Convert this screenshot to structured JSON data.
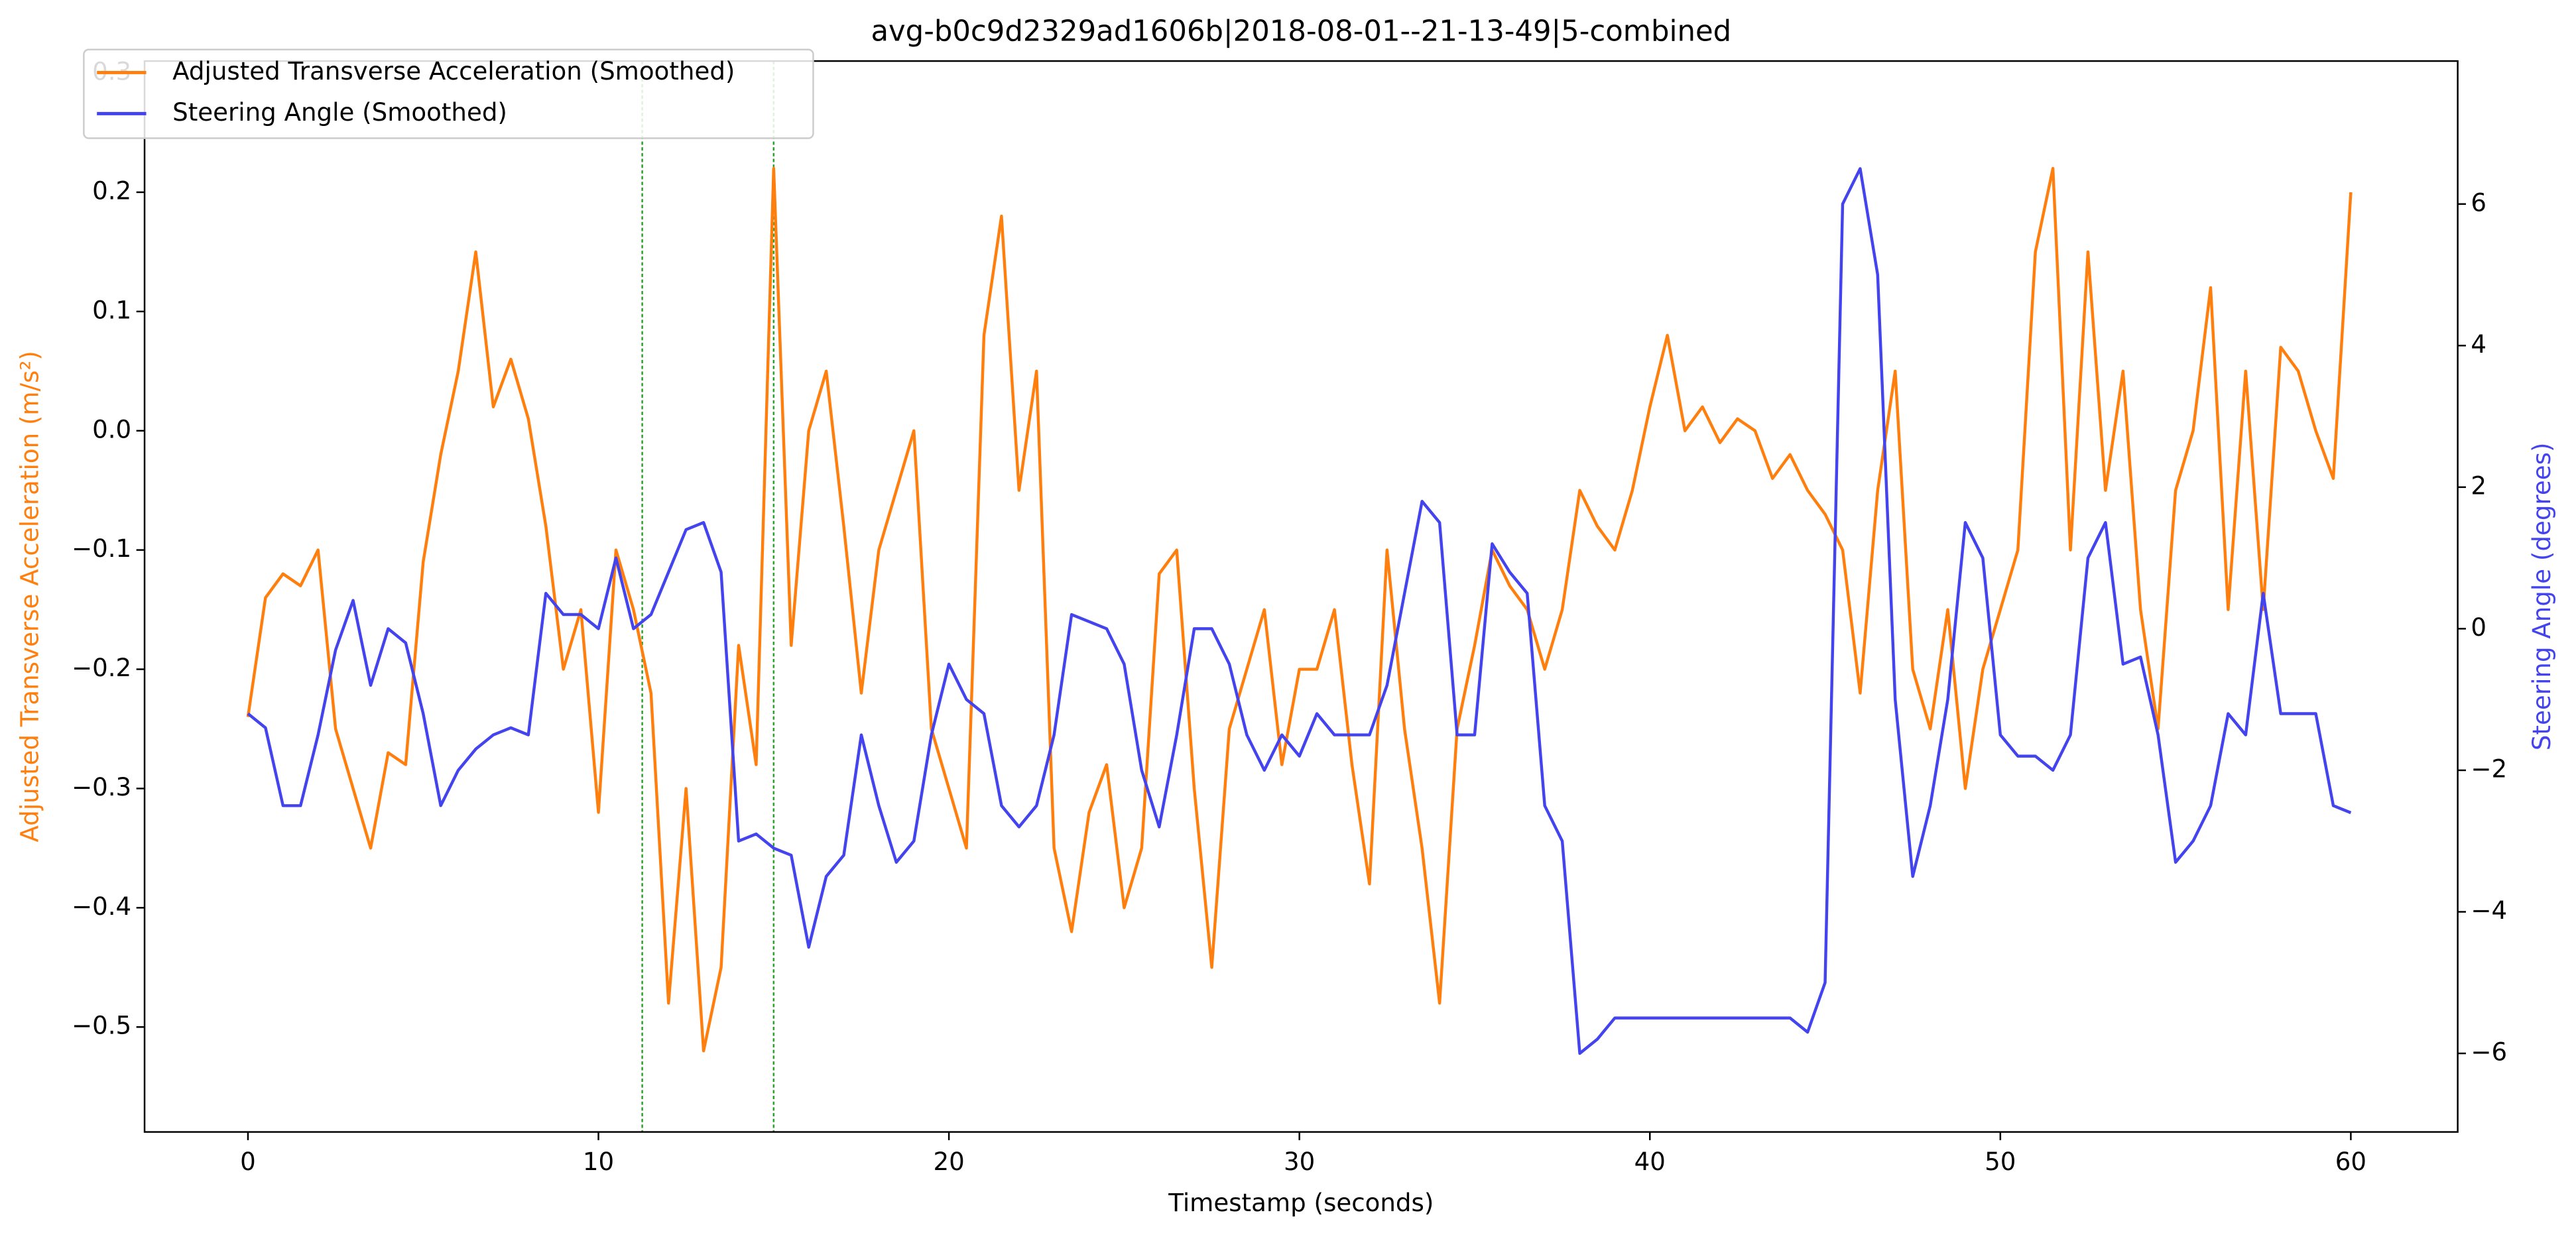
{
  "chart_data": {
    "type": "line",
    "title": "avg-b0c9d2329ad1606b|2018-08-01--21-13-49|5-combined",
    "xlabel": "Timestamp (seconds)",
    "ylabel": "Adjusted Transverse Acceleration (m/s²)",
    "y2label": "Steering Angle (degrees)",
    "x": [
      0,
      0.5,
      1,
      1.5,
      2,
      2.5,
      3,
      3.5,
      4,
      4.5,
      5,
      5.5,
      6,
      6.5,
      7,
      7.5,
      8,
      8.5,
      9,
      9.5,
      10,
      10.5,
      11,
      11.5,
      12,
      12.5,
      13,
      13.5,
      14,
      14.5,
      15,
      15.5,
      16,
      16.5,
      17,
      17.5,
      18,
      18.5,
      19,
      19.5,
      20,
      20.5,
      21,
      21.5,
      22,
      22.5,
      23,
      23.5,
      24,
      24.5,
      25,
      25.5,
      26,
      26.5,
      27,
      27.5,
      28,
      28.5,
      29,
      29.5,
      30,
      30.5,
      31,
      31.5,
      32,
      32.5,
      33,
      33.5,
      34,
      34.5,
      35,
      35.5,
      36,
      36.5,
      37,
      37.5,
      38,
      38.5,
      39,
      39.5,
      40,
      40.5,
      41,
      41.5,
      42,
      42.5,
      43,
      43.5,
      44,
      44.5,
      45,
      45.5,
      46,
      46.5,
      47,
      47.5,
      48,
      48.5,
      49,
      49.5,
      50,
      50.5,
      51,
      51.5,
      52,
      52.5,
      53,
      53.5,
      54,
      54.5,
      55,
      55.5,
      56,
      56.5,
      57,
      57.5,
      58,
      58.5,
      59,
      59.5,
      60
    ],
    "series": [
      {
        "name": "Adjusted Transverse Acceleration (Smoothed)",
        "color": "#ff7f0e",
        "axis": "y",
        "values": [
          -0.24,
          -0.14,
          -0.12,
          -0.13,
          -0.1,
          -0.25,
          -0.3,
          -0.35,
          -0.27,
          -0.28,
          -0.11,
          -0.02,
          0.05,
          0.15,
          0.02,
          0.06,
          0.01,
          -0.08,
          -0.2,
          -0.15,
          -0.32,
          -0.1,
          -0.15,
          -0.22,
          -0.48,
          -0.3,
          -0.52,
          -0.45,
          -0.18,
          -0.28,
          0.22,
          -0.18,
          0.0,
          0.05,
          -0.08,
          -0.22,
          -0.1,
          -0.05,
          0.0,
          -0.25,
          -0.3,
          -0.35,
          0.08,
          0.18,
          -0.05,
          0.05,
          -0.35,
          -0.42,
          -0.32,
          -0.28,
          -0.4,
          -0.35,
          -0.12,
          -0.1,
          -0.3,
          -0.45,
          -0.25,
          -0.2,
          -0.15,
          -0.28,
          -0.2,
          -0.2,
          -0.15,
          -0.28,
          -0.38,
          -0.1,
          -0.25,
          -0.35,
          -0.48,
          -0.25,
          -0.18,
          -0.1,
          -0.13,
          -0.15,
          -0.2,
          -0.15,
          -0.05,
          -0.08,
          -0.1,
          -0.05,
          0.02,
          0.08,
          0.0,
          0.02,
          -0.01,
          0.01,
          0.0,
          -0.04,
          -0.02,
          -0.05,
          -0.07,
          -0.1,
          -0.22,
          -0.05,
          0.05,
          -0.2,
          -0.25,
          -0.15,
          -0.3,
          -0.2,
          -0.15,
          -0.1,
          0.15,
          0.22,
          -0.1,
          0.15,
          -0.05,
          0.05,
          -0.15,
          -0.25,
          -0.05,
          0.0,
          0.12,
          -0.15,
          0.05,
          -0.15,
          0.07,
          0.05,
          0.0,
          -0.04,
          0.2
        ]
      },
      {
        "name": "Steering Angle (Smoothed)",
        "color": "#4444ee",
        "axis": "y2",
        "values": [
          -1.2,
          -1.4,
          -2.5,
          -2.5,
          -1.5,
          -0.3,
          0.4,
          -0.8,
          0.0,
          -0.2,
          -1.2,
          -2.5,
          -2.0,
          -1.7,
          -1.5,
          -1.4,
          -1.5,
          0.5,
          0.2,
          0.2,
          0.0,
          1.0,
          0.0,
          0.2,
          0.8,
          1.4,
          1.5,
          0.8,
          -3.0,
          -2.9,
          -3.1,
          -3.2,
          -4.5,
          -3.5,
          -3.2,
          -1.5,
          -2.5,
          -3.3,
          -3.0,
          -1.5,
          -0.5,
          -1.0,
          -1.2,
          -2.5,
          -2.8,
          -2.5,
          -1.5,
          0.2,
          0.1,
          0.0,
          -0.5,
          -2.0,
          -2.8,
          -1.5,
          0.0,
          0.0,
          -0.5,
          -1.5,
          -2.0,
          -1.5,
          -1.8,
          -1.2,
          -1.5,
          -1.5,
          -1.5,
          -0.8,
          0.5,
          1.8,
          1.5,
          -1.5,
          -1.5,
          1.2,
          0.8,
          0.5,
          -2.5,
          -3.0,
          -6.0,
          -5.8,
          -5.5,
          -5.5,
          -5.5,
          -5.5,
          -5.5,
          -5.5,
          -5.5,
          -5.5,
          -5.5,
          -5.5,
          -5.5,
          -5.7,
          -5.0,
          6.0,
          6.5,
          5.0,
          -1.0,
          -3.5,
          -2.5,
          -1.0,
          1.5,
          1.0,
          -1.5,
          -1.8,
          -1.8,
          -2.0,
          -1.5,
          1.0,
          1.5,
          -0.5,
          -0.4,
          -1.5,
          -3.3,
          -3.0,
          -2.5,
          -1.2,
          -1.5,
          0.5,
          -1.2,
          -1.2,
          -1.2,
          -2.5,
          -2.6
        ]
      }
    ],
    "vlines": [
      11.25,
      15.0
    ],
    "vline_color": "#2ca02c",
    "xlim": [
      -2.95,
      63.05
    ],
    "xticks": [
      0,
      10,
      20,
      30,
      40,
      50,
      60
    ],
    "ylim": [
      -0.588,
      0.31
    ],
    "yticks": [
      {
        "value": -0.5,
        "label": "−0.5"
      },
      {
        "value": -0.4,
        "label": "−0.4"
      },
      {
        "value": -0.3,
        "label": "−0.3"
      },
      {
        "value": -0.2,
        "label": "−0.2"
      },
      {
        "value": -0.1,
        "label": "−0.1"
      },
      {
        "value": 0.0,
        "label": "0.0"
      },
      {
        "value": 0.1,
        "label": "0.1"
      },
      {
        "value": 0.2,
        "label": "0.2"
      },
      {
        "value": 0.3,
        "label": "0.3"
      }
    ],
    "y2lim": [
      -7.11,
      8.02
    ],
    "y2ticks": [
      {
        "value": -6,
        "label": "−6"
      },
      {
        "value": -4,
        "label": "−4"
      },
      {
        "value": -2,
        "label": "−2"
      },
      0,
      2,
      4,
      6
    ],
    "legend": "upper left",
    "grid": false
  }
}
